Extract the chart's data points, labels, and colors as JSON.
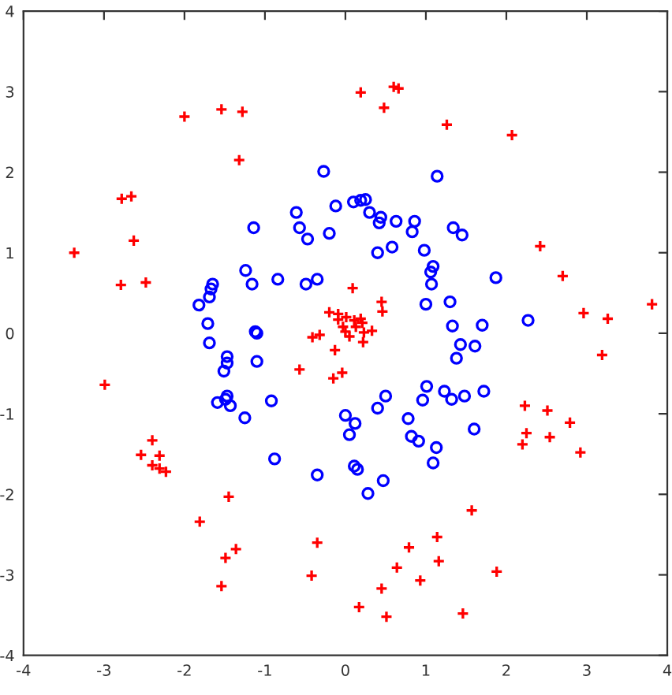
{
  "chart_data": {
    "type": "scatter",
    "xlim": [
      -4,
      4
    ],
    "ylim": [
      -4,
      4
    ],
    "xticks": [
      -4,
      -3,
      -2,
      -1,
      0,
      1,
      2,
      3,
      4
    ],
    "yticks": [
      -4,
      -3,
      -2,
      -1,
      0,
      1,
      2,
      3,
      4
    ],
    "grid": false,
    "series": [
      {
        "color": "#0000ff",
        "marker": "circle",
        "x": [
          -0.27,
          -0.12,
          -0.61,
          -0.57,
          -0.47,
          -0.2,
          -1.14,
          -1.24,
          -1.16,
          -0.84,
          -0.49,
          -0.35,
          -1.65,
          -1.67,
          -1.69,
          -1.82,
          -1.71,
          -1.12,
          -1.1,
          -1.69,
          -1.47,
          -1.47,
          -1.51,
          -1.1,
          -1.59,
          -1.49,
          -1.47,
          -1.43,
          -1.25,
          -0.92,
          -0.88,
          -0.35,
          0.0,
          0.12,
          0.05,
          0.11,
          0.15,
          0.47,
          0.28,
          0.4,
          0.5,
          0.78,
          0.82,
          0.91,
          1.01,
          0.96,
          1.13,
          1.09,
          1.23,
          1.32,
          1.48,
          1.72,
          1.6,
          1.38,
          1.43,
          1.61,
          1.33,
          1.7,
          2.27,
          0.1,
          0.19,
          0.25,
          0.3,
          0.44,
          0.42,
          0.63,
          0.86,
          0.83,
          1.14,
          1.34,
          1.45,
          0.4,
          0.58,
          0.98,
          1.09,
          1.06,
          1.07,
          1.87,
          1.0,
          1.3
        ],
        "values": [
          2.01,
          1.58,
          1.5,
          1.31,
          1.17,
          1.24,
          1.31,
          0.78,
          0.61,
          0.67,
          0.61,
          0.67,
          0.61,
          0.55,
          0.45,
          0.35,
          0.12,
          0.02,
          0.0,
          -0.12,
          -0.29,
          -0.37,
          -0.47,
          -0.35,
          -0.86,
          -0.82,
          -0.78,
          -0.9,
          -1.05,
          -0.84,
          -1.56,
          -1.76,
          -1.02,
          -1.12,
          -1.26,
          -1.65,
          -1.69,
          -1.83,
          -1.99,
          -0.93,
          -0.78,
          -1.06,
          -1.28,
          -1.34,
          -0.66,
          -0.83,
          -1.42,
          -1.61,
          -0.72,
          -0.82,
          -0.78,
          -0.72,
          -1.19,
          -0.31,
          -0.14,
          -0.16,
          0.09,
          0.1,
          0.16,
          1.63,
          1.65,
          1.66,
          1.5,
          1.44,
          1.37,
          1.39,
          1.39,
          1.26,
          1.95,
          1.31,
          1.22,
          1.0,
          1.07,
          1.03,
          0.83,
          0.76,
          0.61,
          0.69,
          0.36,
          0.39
        ]
      },
      {
        "color": "#ff0000",
        "marker": "cross",
        "x": [
          -3.37,
          -2.79,
          -2.48,
          -2.78,
          -2.66,
          -2.63,
          -2.0,
          -1.54,
          -1.28,
          -1.32,
          0.19,
          0.6,
          0.66,
          0.48,
          1.26,
          2.07,
          2.42,
          2.7,
          3.81,
          2.96,
          3.26,
          -0.41,
          -0.32,
          -0.2,
          -0.09,
          -0.09,
          -0.03,
          0.01,
          0.11,
          0.19,
          0.0,
          0.05,
          0.13,
          0.22,
          0.23,
          0.33,
          0.21,
          -0.13,
          -0.15,
          -0.04,
          -0.57,
          0.45,
          0.46,
          0.09,
          -2.99,
          -2.4,
          -2.54,
          -2.31,
          -2.4,
          -2.31,
          -2.23,
          -1.45,
          -1.81,
          -1.36,
          -1.49,
          -1.54,
          -0.35,
          -0.42,
          3.19,
          2.23,
          2.51,
          2.79,
          2.25,
          2.54,
          2.2,
          2.92,
          1.57,
          1.14,
          0.79,
          0.64,
          1.16,
          1.88,
          0.93,
          0.45,
          0.17,
          0.51,
          1.46
        ],
        "values": [
          1.0,
          0.6,
          0.63,
          1.67,
          1.7,
          1.15,
          2.69,
          2.78,
          2.75,
          2.15,
          2.99,
          3.06,
          3.04,
          2.8,
          2.59,
          2.46,
          1.08,
          0.71,
          0.36,
          0.25,
          0.18,
          -0.05,
          -0.02,
          0.26,
          0.24,
          0.17,
          0.08,
          0.2,
          0.16,
          0.18,
          0.02,
          -0.04,
          0.08,
          -0.11,
          0.01,
          0.03,
          0.13,
          -0.21,
          -0.56,
          -0.49,
          -0.45,
          0.39,
          0.27,
          0.56,
          -0.64,
          -1.33,
          -1.51,
          -1.52,
          -1.64,
          -1.68,
          -1.72,
          -2.03,
          -2.34,
          -2.68,
          -2.79,
          -3.14,
          -2.6,
          -3.01,
          -0.27,
          -0.9,
          -0.96,
          -1.11,
          -1.24,
          -1.29,
          -1.38,
          -1.48,
          -2.2,
          -2.53,
          -2.66,
          -2.91,
          -2.83,
          -2.96,
          -3.07,
          -3.17,
          -3.4,
          -3.52,
          -3.48
        ]
      }
    ]
  }
}
